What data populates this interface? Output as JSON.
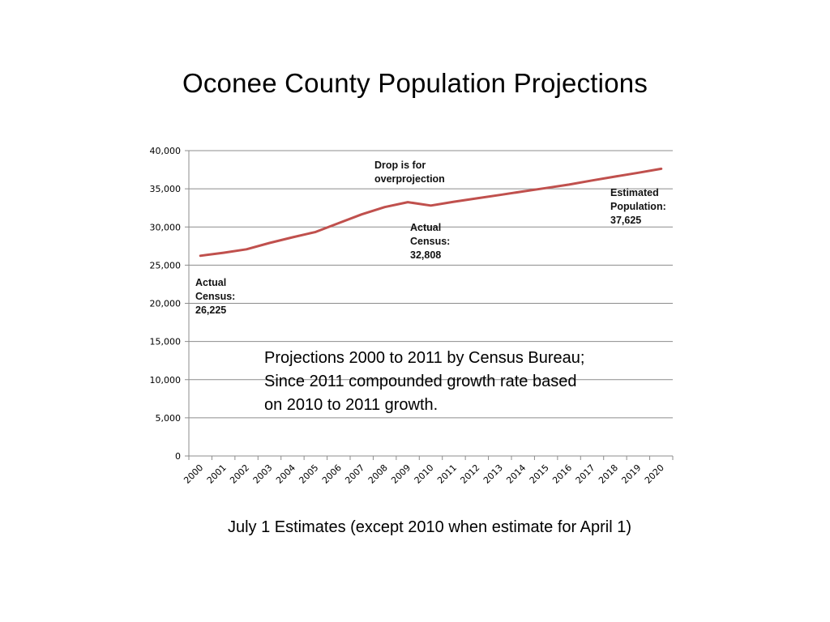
{
  "chart_data": {
    "type": "line",
    "title": "Oconee County Population Projections",
    "subtitle": "July 1 Estimates (except 2010 when estimate for April 1)",
    "x": [
      "2000",
      "2001",
      "2002",
      "2003",
      "2004",
      "2005",
      "2006",
      "2007",
      "2008",
      "2009",
      "2010",
      "2011",
      "2012",
      "2013",
      "2014",
      "2015",
      "2016",
      "2017",
      "2018",
      "2019",
      "2020"
    ],
    "series": [
      {
        "values": [
          26225,
          26620,
          27080,
          27900,
          28650,
          29350,
          30500,
          31650,
          32600,
          33250,
          32808,
          33300,
          33750,
          34200,
          34650,
          35100,
          35550,
          36100,
          36600,
          37100,
          37625
        ],
        "color": "#c0504d"
      }
    ],
    "ylim": [
      0,
      40000
    ],
    "yticks": [
      "0",
      "5,000",
      "10,000",
      "15,000",
      "20,000",
      "25,000",
      "30,000",
      "35,000",
      "40,000"
    ],
    "grid": true,
    "legend": "none",
    "annotations": [
      {
        "text": "Actual\nCensus:\n26,225"
      },
      {
        "text": "Drop is for\noverprojection"
      },
      {
        "text": "Actual\nCensus:\n32,808"
      },
      {
        "text": "Estimated\nPopulation:\n37,625"
      }
    ],
    "note": "Projections 2000 to 2011 by Census Bureau;\nSince 2011 compounded growth rate based\non 2010 to 2011 growth."
  }
}
